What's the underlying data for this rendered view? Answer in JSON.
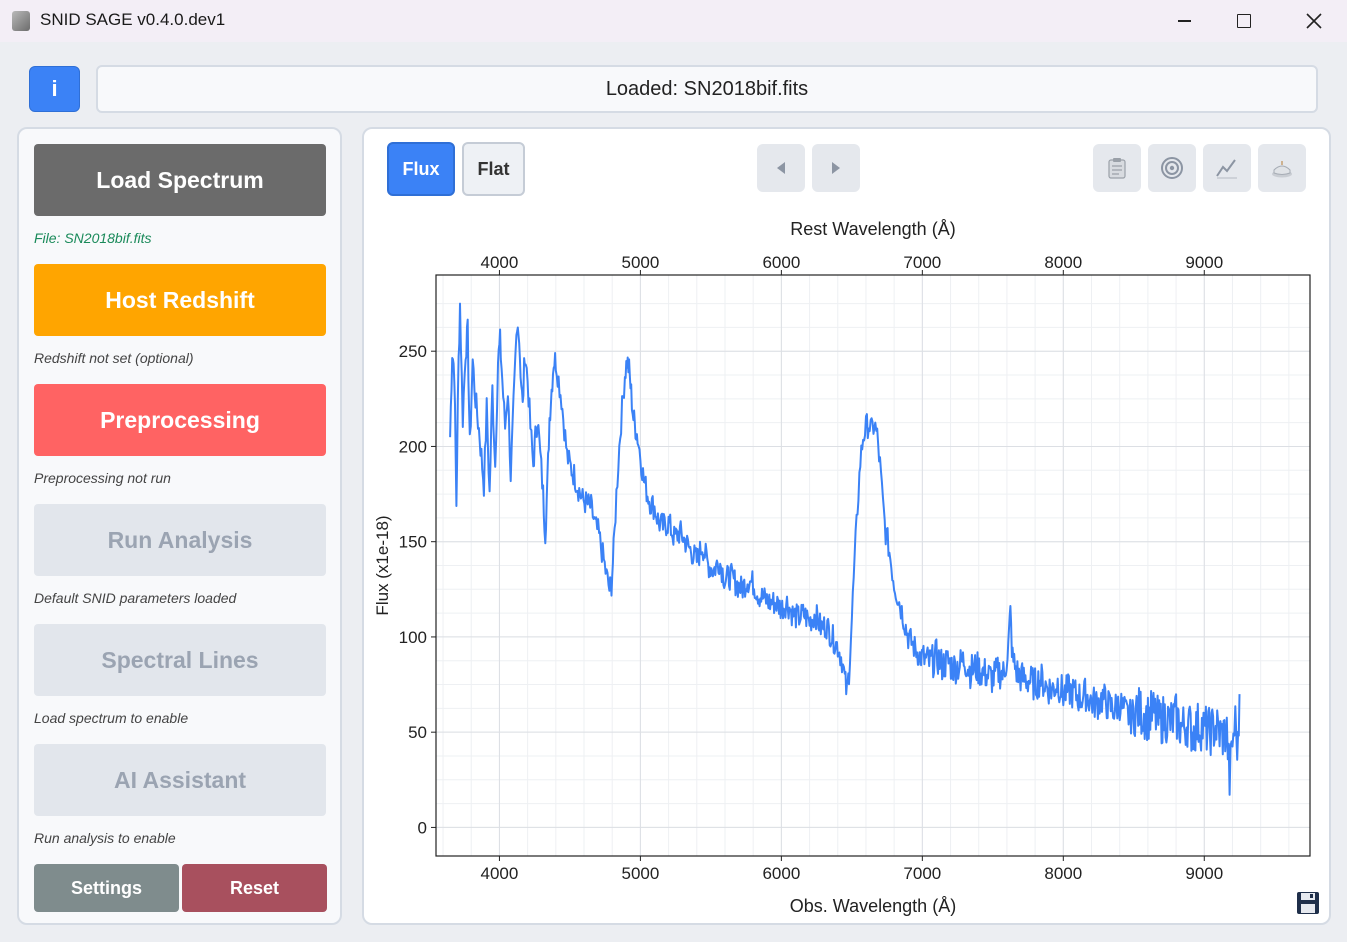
{
  "window": {
    "title": "SNID SAGE v0.4.0.dev1",
    "minimize_icon": "minimize-icon",
    "maximize_icon": "maximize-icon",
    "close_icon": "close-icon"
  },
  "header": {
    "info_label": "i",
    "status_text": "Loaded: SN2018bif.fits"
  },
  "sidebar": {
    "workflow": [
      {
        "label": "Load Spectrum",
        "status": "File: SN2018bif.fits",
        "color": "#6b6b6b",
        "status_color": "#1a8a5a",
        "enabled": true
      },
      {
        "label": "Host Redshift",
        "status": "Redshift not set (optional)",
        "color": "#ffa500",
        "status_color": "#444444",
        "enabled": true
      },
      {
        "label": "Preprocessing",
        "status": "Preprocessing not run",
        "color": "#ff6363",
        "status_color": "#444444",
        "enabled": true
      },
      {
        "label": "Run Analysis",
        "status": "Default SNID parameters loaded",
        "color": "#e2e6ec",
        "status_color": "#444444",
        "enabled": false
      },
      {
        "label": "Spectral Lines",
        "status": "Load spectrum to enable",
        "color": "#e2e6ec",
        "status_color": "#444444",
        "enabled": false
      },
      {
        "label": "AI Assistant",
        "status": "Run analysis to enable",
        "color": "#e2e6ec",
        "status_color": "#444444",
        "enabled": false
      }
    ],
    "settings_label": "Settings",
    "reset_label": "Reset",
    "settings_color": "#7f8c8d",
    "reset_color": "#a8505e"
  },
  "plot_toolbar": {
    "flux_label": "Flux",
    "flat_label": "Flat",
    "active_view": "Flux",
    "prev_icon": "prev-arrow-icon",
    "next_icon": "next-arrow-icon",
    "tools": [
      "clipboard-icon",
      "target-icon",
      "chart-line-icon",
      "cake-icon"
    ],
    "save_icon": "save-icon"
  },
  "chart_data": {
    "type": "line",
    "title": "",
    "top_xlabel": "Rest Wavelength (Å)",
    "xlabel": "Obs. Wavelength (Å)",
    "ylabel": "Flux (x1e-18)",
    "xlim": [
      3550,
      9750
    ],
    "ylim": [
      -15,
      290
    ],
    "x_ticks": [
      4000,
      5000,
      6000,
      7000,
      8000,
      9000
    ],
    "top_x_ticks": [
      4000,
      5000,
      6000,
      7000,
      8000,
      9000
    ],
    "y_ticks": [
      0,
      50,
      100,
      150,
      200,
      250
    ],
    "grid": true,
    "line_color": "#3b82f6",
    "series": [
      {
        "name": "SN2018bif",
        "points": [
          [
            3650,
            205
          ],
          [
            3665,
            250
          ],
          [
            3680,
            240
          ],
          [
            3695,
            170
          ],
          [
            3710,
            245
          ],
          [
            3720,
            275
          ],
          [
            3740,
            215
          ],
          [
            3760,
            250
          ],
          [
            3775,
            260
          ],
          [
            3790,
            200
          ],
          [
            3810,
            245
          ],
          [
            3830,
            225
          ],
          [
            3860,
            205
          ],
          [
            3890,
            180
          ],
          [
            3910,
            220
          ],
          [
            3930,
            175
          ],
          [
            3950,
            230
          ],
          [
            3970,
            190
          ],
          [
            3990,
            245
          ],
          [
            4005,
            255
          ],
          [
            4020,
            235
          ],
          [
            4040,
            210
          ],
          [
            4060,
            230
          ],
          [
            4080,
            185
          ],
          [
            4100,
            220
          ],
          [
            4120,
            255
          ],
          [
            4135,
            265
          ],
          [
            4150,
            240
          ],
          [
            4165,
            220
          ],
          [
            4180,
            250
          ],
          [
            4200,
            235
          ],
          [
            4220,
            210
          ],
          [
            4240,
            190
          ],
          [
            4255,
            205
          ],
          [
            4270,
            215
          ],
          [
            4290,
            195
          ],
          [
            4310,
            175
          ],
          [
            4325,
            155
          ],
          [
            4340,
            180
          ],
          [
            4355,
            215
          ],
          [
            4370,
            230
          ],
          [
            4385,
            245
          ],
          [
            4400,
            245
          ],
          [
            4420,
            235
          ],
          [
            4440,
            225
          ],
          [
            4460,
            210
          ],
          [
            4480,
            195
          ],
          [
            4500,
            190
          ],
          [
            4530,
            185
          ],
          [
            4560,
            178
          ],
          [
            4590,
            172
          ],
          [
            4620,
            170
          ],
          [
            4650,
            168
          ],
          [
            4680,
            158
          ],
          [
            4700,
            155
          ],
          [
            4720,
            148
          ],
          [
            4740,
            140
          ],
          [
            4760,
            132
          ],
          [
            4780,
            125
          ],
          [
            4795,
            128
          ],
          [
            4810,
            145
          ],
          [
            4830,
            175
          ],
          [
            4850,
            200
          ],
          [
            4870,
            220
          ],
          [
            4890,
            238
          ],
          [
            4905,
            245
          ],
          [
            4920,
            240
          ],
          [
            4935,
            228
          ],
          [
            4950,
            215
          ],
          [
            4965,
            210
          ],
          [
            4980,
            205
          ],
          [
            5000,
            195
          ],
          [
            5025,
            182
          ],
          [
            5050,
            175
          ],
          [
            5075,
            170
          ],
          [
            5100,
            168
          ],
          [
            5130,
            160
          ],
          [
            5160,
            158
          ],
          [
            5200,
            160
          ],
          [
            5240,
            152
          ],
          [
            5280,
            155
          ],
          [
            5320,
            150
          ],
          [
            5360,
            145
          ],
          [
            5400,
            140
          ],
          [
            5440,
            148
          ],
          [
            5480,
            138
          ],
          [
            5520,
            135
          ],
          [
            5560,
            140
          ],
          [
            5600,
            130
          ],
          [
            5640,
            132
          ],
          [
            5680,
            128
          ],
          [
            5720,
            125
          ],
          [
            5760,
            130
          ],
          [
            5800,
            128
          ],
          [
            5840,
            122
          ],
          [
            5880,
            120
          ],
          [
            5920,
            118
          ],
          [
            5960,
            118
          ],
          [
            6000,
            115
          ],
          [
            6040,
            118
          ],
          [
            6080,
            112
          ],
          [
            6120,
            110
          ],
          [
            6160,
            112
          ],
          [
            6200,
            108
          ],
          [
            6240,
            112
          ],
          [
            6280,
            105
          ],
          [
            6320,
            106
          ],
          [
            6360,
            100
          ],
          [
            6400,
            95
          ],
          [
            6430,
            88
          ],
          [
            6450,
            78
          ],
          [
            6465,
            70
          ],
          [
            6480,
            82
          ],
          [
            6500,
            110
          ],
          [
            6520,
            140
          ],
          [
            6540,
            168
          ],
          [
            6560,
            192
          ],
          [
            6580,
            205
          ],
          [
            6600,
            210
          ],
          [
            6620,
            212
          ],
          [
            6640,
            208
          ],
          [
            6660,
            212
          ],
          [
            6680,
            205
          ],
          [
            6700,
            190
          ],
          [
            6720,
            170
          ],
          [
            6740,
            155
          ],
          [
            6760,
            148
          ],
          [
            6780,
            138
          ],
          [
            6800,
            128
          ],
          [
            6830,
            120
          ],
          [
            6860,
            112
          ],
          [
            6900,
            100
          ],
          [
            6940,
            95
          ],
          [
            6980,
            90
          ],
          [
            7020,
            88
          ],
          [
            7060,
            86
          ],
          [
            7100,
            90
          ],
          [
            7140,
            85
          ],
          [
            7180,
            87
          ],
          [
            7220,
            84
          ],
          [
            7260,
            85
          ],
          [
            7300,
            88
          ],
          [
            7340,
            82
          ],
          [
            7380,
            84
          ],
          [
            7420,
            82
          ],
          [
            7460,
            80
          ],
          [
            7500,
            78
          ],
          [
            7540,
            82
          ],
          [
            7580,
            80
          ],
          [
            7610,
            95
          ],
          [
            7625,
            112
          ],
          [
            7640,
            88
          ],
          [
            7680,
            80
          ],
          [
            7720,
            78
          ],
          [
            7760,
            77
          ],
          [
            7800,
            75
          ],
          [
            7840,
            78
          ],
          [
            7880,
            74
          ],
          [
            7920,
            72
          ],
          [
            7960,
            76
          ],
          [
            8000,
            70
          ],
          [
            8040,
            72
          ],
          [
            8080,
            70
          ],
          [
            8120,
            68
          ],
          [
            8160,
            70
          ],
          [
            8200,
            66
          ],
          [
            8240,
            65
          ],
          [
            8280,
            68
          ],
          [
            8320,
            64
          ],
          [
            8360,
            62
          ],
          [
            8400,
            65
          ],
          [
            8440,
            60
          ],
          [
            8480,
            58
          ],
          [
            8520,
            62
          ],
          [
            8560,
            60
          ],
          [
            8600,
            58
          ],
          [
            8640,
            60
          ],
          [
            8680,
            55
          ],
          [
            8720,
            58
          ],
          [
            8760,
            55
          ],
          [
            8800,
            58
          ],
          [
            8840,
            52
          ],
          [
            8880,
            55
          ],
          [
            8920,
            50
          ],
          [
            8960,
            54
          ],
          [
            9000,
            52
          ],
          [
            9040,
            50
          ],
          [
            9080,
            53
          ],
          [
            9120,
            48
          ],
          [
            9160,
            50
          ],
          [
            9180,
            25
          ],
          [
            9200,
            45
          ],
          [
            9220,
            55
          ],
          [
            9240,
            40
          ],
          [
            9250,
            70
          ]
        ]
      }
    ]
  }
}
